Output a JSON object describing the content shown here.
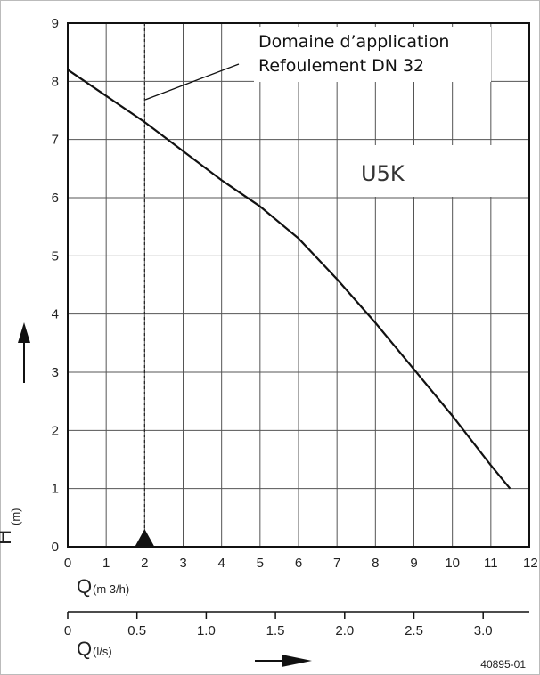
{
  "chart_data": {
    "type": "line",
    "series": [
      {
        "name": "U5K",
        "x": [
          0,
          1,
          2,
          3,
          4,
          5,
          6,
          7,
          8,
          9,
          10,
          11,
          11.5
        ],
        "y": [
          8.2,
          7.75,
          7.3,
          6.8,
          6.3,
          5.85,
          5.3,
          4.6,
          3.85,
          3.05,
          2.25,
          1.4,
          1.0
        ]
      }
    ],
    "xlim": [
      0,
      12
    ],
    "ylim": [
      0,
      9
    ],
    "x_ticks": [
      "0",
      "1",
      "2",
      "3",
      "4",
      "5",
      "6",
      "7",
      "8",
      "9",
      "10",
      "11",
      "12"
    ],
    "y_ticks": [
      "0",
      "1",
      "2",
      "3",
      "4",
      "5",
      "6",
      "7",
      "8",
      "9"
    ],
    "xlabel_symbol": "Q",
    "xlabel_unit": "(m 3/h)",
    "ylabel_symbol": "H",
    "ylabel_unit": "(m)",
    "secondary_x": {
      "ticks": [
        "0",
        "0.5",
        "1.0",
        "1.5",
        "2.0",
        "2.5",
        "3.0"
      ],
      "tick_values": [
        0,
        0.5,
        1.0,
        1.5,
        2.0,
        2.5,
        3.0
      ],
      "label_symbol": "Q",
      "label_unit": "(l/s)"
    },
    "annotations": {
      "range_title": "Domaine d’application",
      "range_subtitle": "Refoulement DN 32",
      "range_marker_x": 2,
      "curve_label": "U5K"
    },
    "grid": true,
    "figure_number": "40895-01"
  }
}
